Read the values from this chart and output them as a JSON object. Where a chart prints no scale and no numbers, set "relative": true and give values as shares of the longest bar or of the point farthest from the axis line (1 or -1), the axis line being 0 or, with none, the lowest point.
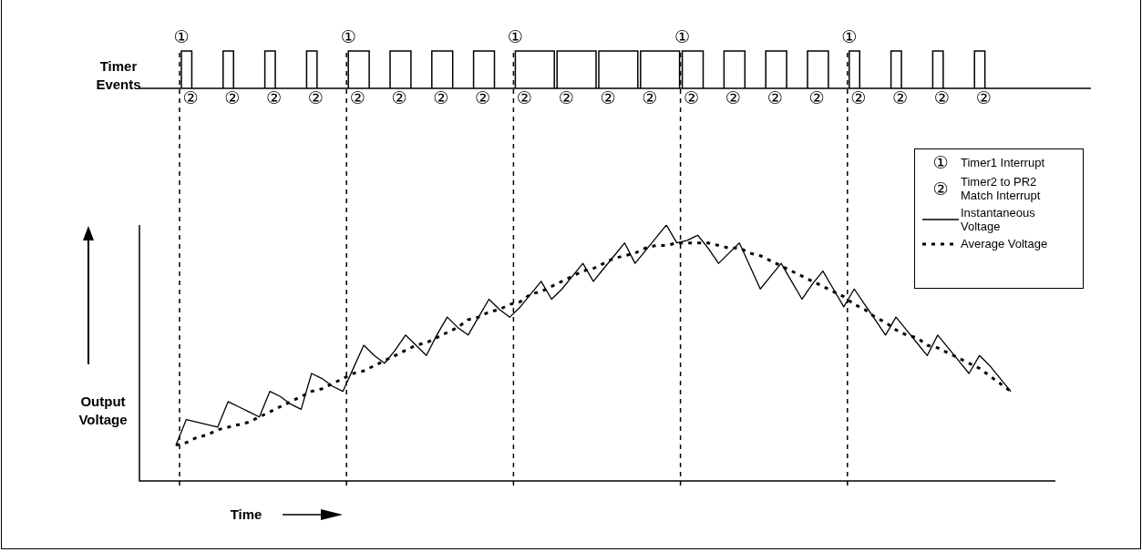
{
  "chart_data": {
    "type": "line",
    "relative": true,
    "xlabel": "Time",
    "ylabel": "Output Voltage",
    "legend": "top right",
    "marker": "none",
    "annotations": [
      "Timer Events",
      "①",
      "②",
      "Timer1 Interrupt",
      "Timer2 to PR2 Match Interrupt"
    ],
    "categories": [
      null,
      null,
      null,
      null,
      null,
      null,
      null,
      null,
      null,
      null,
      null,
      null,
      null,
      null,
      null,
      null,
      null,
      null,
      null,
      null,
      null,
      null,
      null,
      null,
      null,
      null,
      null,
      null,
      null,
      null,
      null,
      null,
      null,
      null,
      null,
      null,
      null,
      null,
      null,
      null,
      null,
      null,
      null,
      null,
      null,
      null,
      null,
      null,
      null,
      null,
      null,
      null,
      null,
      null,
      null,
      null,
      null,
      null,
      null,
      null,
      null,
      null,
      null,
      null,
      null,
      null,
      null,
      null,
      null,
      null,
      null,
      null,
      null,
      null,
      null,
      null,
      null,
      null,
      null,
      null,
      null
    ],
    "series": [
      {
        "name": "Instantaneous Voltage",
        "color": "#000000",
        "line_style": "solid",
        "values": [
          0.14,
          0.24,
          0.23,
          0.22,
          0.21,
          0.31,
          0.29,
          0.27,
          0.25,
          0.35,
          0.33,
          0.3,
          0.28,
          0.42,
          0.4,
          0.37,
          0.35,
          0.44,
          0.53,
          0.49,
          0.46,
          0.51,
          0.57,
          0.53,
          0.49,
          0.57,
          0.64,
          0.6,
          0.57,
          0.64,
          0.71,
          0.67,
          0.64,
          0.68,
          0.73,
          0.78,
          0.71,
          0.75,
          0.8,
          0.85,
          0.78,
          0.83,
          0.88,
          0.93,
          0.85,
          0.9,
          0.95,
          1,
          0.93,
          0.94,
          0.96,
          0.91,
          0.85,
          0.89,
          0.93,
          0.84,
          0.75,
          0.8,
          0.85,
          0.78,
          0.71,
          0.77,
          0.82,
          0.75,
          0.68,
          0.75,
          0.69,
          0.63,
          0.57,
          0.64,
          0.59,
          0.54,
          0.49,
          0.57,
          0.52,
          0.47,
          0.42,
          0.49,
          0.45,
          0.4,
          0.35
        ]
      },
      {
        "name": "Average Voltage",
        "color": "#000000",
        "line_style": "dotted",
        "values": [
          0.14,
          0.15,
          0.17,
          0.18,
          0.2,
          0.21,
          0.22,
          0.23,
          0.25,
          0.27,
          0.29,
          0.31,
          0.33,
          0.35,
          0.36,
          0.38,
          0.4,
          0.42,
          0.43,
          0.45,
          0.47,
          0.49,
          0.51,
          0.53,
          0.54,
          0.56,
          0.58,
          0.6,
          0.63,
          0.64,
          0.66,
          0.67,
          0.69,
          0.7,
          0.73,
          0.74,
          0.76,
          0.78,
          0.8,
          0.82,
          0.83,
          0.85,
          0.87,
          0.88,
          0.89,
          0.91,
          0.92,
          0.92,
          0.93,
          0.93,
          0.93,
          0.93,
          0.92,
          0.91,
          0.91,
          0.89,
          0.88,
          0.86,
          0.84,
          0.82,
          0.8,
          0.78,
          0.76,
          0.74,
          0.72,
          0.69,
          0.67,
          0.64,
          0.62,
          0.59,
          0.57,
          0.56,
          0.53,
          0.52,
          0.5,
          0.48,
          0.46,
          0.44,
          0.41,
          0.38,
          0.35
        ]
      }
    ]
  }
}
